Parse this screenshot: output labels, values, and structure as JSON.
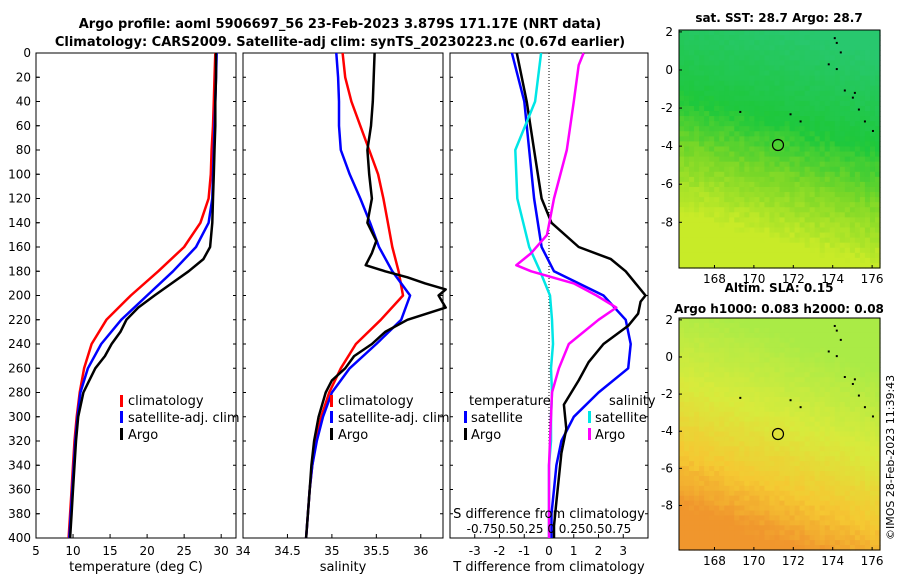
{
  "header": {
    "line1": "Argo profile: aoml 5906697_56 23-Feb-2023 3.879S 171.17E (NRT data)",
    "line2": "Climatology: CARS2009. Satellite-adj clim: synTS_20230223.nc (0.67d earlier)"
  },
  "credit": "©IMOS 28-Feb-2023 11:39:43",
  "colors": {
    "climatology": "#ff0000",
    "satellite": "#0000ff",
    "argo": "#000000",
    "s_satellite": "#00e6e6",
    "s_argo": "#ff00ff"
  },
  "chart_data": [
    {
      "type": "line",
      "panel": "temperature",
      "xlabel": "temperature (deg C)",
      "ylabel": "depth",
      "xlim": [
        5,
        32
      ],
      "ylim": [
        0,
        400
      ],
      "yticks": [
        "0",
        "20",
        "40",
        "60",
        "80",
        "100",
        "120",
        "140",
        "160",
        "180",
        "200",
        "220",
        "240",
        "260",
        "280",
        "300",
        "320",
        "340",
        "360",
        "380",
        "400"
      ],
      "xticks": [
        "5",
        "10",
        "15",
        "20",
        "25",
        "30"
      ],
      "legend": [
        "climatology",
        "satellite-adj. clim",
        "Argo"
      ],
      "series": [
        {
          "name": "climatology",
          "depth": [
            0,
            20,
            40,
            60,
            80,
            100,
            120,
            140,
            160,
            180,
            200,
            220,
            240,
            260,
            280,
            300,
            320,
            340,
            360,
            380,
            400
          ],
          "values": [
            29.2,
            29.1,
            29.0,
            28.9,
            28.7,
            28.6,
            28.3,
            27.2,
            25.0,
            21.5,
            17.8,
            14.5,
            12.5,
            11.5,
            10.9,
            10.5,
            10.2,
            10.0,
            9.8,
            9.6,
            9.4
          ]
        },
        {
          "name": "satellite-adj. clim",
          "depth": [
            0,
            20,
            40,
            60,
            80,
            100,
            120,
            140,
            160,
            180,
            200,
            220,
            240,
            260,
            280,
            300,
            320,
            340,
            360,
            380,
            400
          ],
          "values": [
            29.4,
            29.3,
            29.2,
            29.1,
            29.0,
            28.9,
            28.8,
            28.3,
            26.6,
            23.5,
            20.0,
            16.5,
            13.8,
            12.0,
            11.0,
            10.6,
            10.3,
            10.1,
            9.9,
            9.7,
            9.5
          ]
        },
        {
          "name": "Argo",
          "depth": [
            0,
            20,
            40,
            60,
            80,
            100,
            120,
            140,
            160,
            170,
            180,
            190,
            200,
            210,
            220,
            230,
            240,
            250,
            260,
            270,
            280,
            300,
            320,
            340,
            360,
            380,
            400
          ],
          "values": [
            29.3,
            29.3,
            29.2,
            29.2,
            29.1,
            29.0,
            28.9,
            28.8,
            28.5,
            27.6,
            25.6,
            23.3,
            21.0,
            18.8,
            17.2,
            16.4,
            15.2,
            14.3,
            13.0,
            12.2,
            11.4,
            10.7,
            10.4,
            10.2,
            10.0,
            9.8,
            9.6
          ]
        }
      ]
    },
    {
      "type": "line",
      "panel": "salinity",
      "xlabel": "salinity",
      "xlim": [
        34,
        36.25
      ],
      "ylim": [
        0,
        400
      ],
      "xticks": [
        "34",
        "34.5",
        "35",
        "35.5",
        "36"
      ],
      "legend": [
        "climatology",
        "satellite-adj. clim",
        "Argo"
      ],
      "series": [
        {
          "name": "climatology",
          "depth": [
            0,
            20,
            40,
            60,
            80,
            100,
            120,
            140,
            160,
            180,
            200,
            220,
            240,
            260,
            280,
            300,
            320,
            340,
            360,
            380,
            400
          ],
          "values": [
            35.12,
            35.15,
            35.22,
            35.32,
            35.42,
            35.52,
            35.58,
            35.63,
            35.68,
            35.75,
            35.8,
            35.55,
            35.27,
            35.1,
            34.97,
            34.88,
            34.82,
            34.78,
            34.75,
            34.73,
            34.71
          ]
        },
        {
          "name": "satellite-adj. clim",
          "depth": [
            0,
            20,
            40,
            60,
            80,
            100,
            120,
            140,
            160,
            180,
            200,
            220,
            240,
            260,
            280,
            300,
            320,
            340,
            360,
            380,
            400
          ],
          "values": [
            35.05,
            35.07,
            35.08,
            35.08,
            35.1,
            35.2,
            35.32,
            35.43,
            35.53,
            35.68,
            35.88,
            35.78,
            35.5,
            35.2,
            35.0,
            34.9,
            34.83,
            34.78,
            34.75,
            34.73,
            34.71
          ]
        },
        {
          "name": "Argo",
          "depth": [
            0,
            20,
            40,
            60,
            80,
            100,
            120,
            140,
            155,
            165,
            175,
            180,
            185,
            190,
            195,
            200,
            210,
            220,
            230,
            240,
            250,
            260,
            270,
            280,
            300,
            320,
            340,
            360,
            380,
            400
          ],
          "values": [
            35.48,
            35.47,
            35.46,
            35.44,
            35.4,
            35.42,
            35.45,
            35.4,
            35.5,
            35.45,
            35.38,
            35.6,
            35.85,
            36.05,
            36.28,
            36.2,
            36.28,
            35.85,
            35.6,
            35.45,
            35.25,
            35.15,
            35.0,
            34.93,
            34.85,
            34.8,
            34.77,
            34.75,
            34.73,
            34.71
          ]
        }
      ]
    },
    {
      "type": "line",
      "panel": "difference",
      "xlabel": "T difference from climatology",
      "xlabel2": "S difference from climatology",
      "xlim": [
        -4,
        4
      ],
      "ylim": [
        0,
        400
      ],
      "xticks": [
        "-3",
        "-2",
        "-1",
        "0",
        "1",
        "2",
        "3"
      ],
      "xticks2": [
        "-0.75",
        "0.5",
        "0.25",
        "0",
        "0.25",
        "0.5",
        "0.75"
      ],
      "legend_left_title": "temperature",
      "legend_right_title": "salinity",
      "legend": [
        "satellite",
        "Argo",
        "satellite",
        "Argo"
      ],
      "series": [
        {
          "name": "T satellite",
          "depth": [
            0,
            40,
            80,
            120,
            160,
            180,
            200,
            220,
            240,
            260,
            280,
            300,
            320,
            340,
            360,
            380,
            400
          ],
          "values": [
            -1.5,
            -1.0,
            -0.8,
            -0.6,
            -0.3,
            0.2,
            2.2,
            3.1,
            3.3,
            3.2,
            2.0,
            1.0,
            0.5,
            0.3,
            0.2,
            0.1,
            0.1
          ]
        },
        {
          "name": "T Argo",
          "depth": [
            0,
            40,
            80,
            120,
            140,
            160,
            170,
            180,
            190,
            200,
            205,
            215,
            225,
            240,
            255,
            270,
            290,
            310,
            330,
            350,
            370,
            390,
            400
          ],
          "values": [
            -1.3,
            -0.9,
            -0.6,
            -0.3,
            0.1,
            1.2,
            2.5,
            3.1,
            3.5,
            3.9,
            3.7,
            3.6,
            3.2,
            2.2,
            1.6,
            1.2,
            0.6,
            0.7,
            0.5,
            0.4,
            0.3,
            0.2,
            0.2
          ]
        },
        {
          "name": "S satellite",
          "depth": [
            0,
            40,
            80,
            120,
            160,
            180,
            200,
            220,
            240,
            260,
            280,
            300,
            320,
            340,
            360,
            380,
            400
          ],
          "values": [
            -0.08,
            -0.14,
            -0.34,
            -0.32,
            -0.2,
            -0.09,
            0.01,
            0.03,
            0.04,
            0.02,
            0.03,
            0.02,
            0.02,
            0.0,
            0.0,
            0.0,
            0.0
          ]
        },
        {
          "name": "S Argo",
          "depth": [
            0,
            10,
            40,
            80,
            120,
            150,
            165,
            175,
            180,
            190,
            200,
            210,
            220,
            240,
            260,
            280,
            300,
            320,
            340,
            360,
            380,
            400
          ],
          "values": [
            0.35,
            0.3,
            0.25,
            0.18,
            0.05,
            -0.02,
            -0.18,
            -0.33,
            -0.18,
            0.25,
            0.48,
            0.68,
            0.5,
            0.2,
            0.1,
            0.03,
            0.02,
            0.01,
            0.0,
            0.0,
            0.0,
            0.0
          ]
        }
      ]
    },
    {
      "type": "heatmap",
      "panel": "sst-map",
      "title": "sat. SST: 28.7 Argo: 28.7",
      "xticks": [
        "168",
        "170",
        "172",
        "174",
        "176"
      ],
      "yticks": [
        "2",
        "0",
        "-2",
        "-4",
        "-6",
        "-8"
      ],
      "xlim": [
        166.2,
        176.4
      ],
      "ylim": [
        -10.4,
        2.1
      ],
      "marker": {
        "lon": 171.17,
        "lat": -3.879
      }
    },
    {
      "type": "heatmap",
      "panel": "sla-map",
      "title": "Altim. SLA: 0.15",
      "subtitle": "Argo h1000: 0.083 h2000: 0.08",
      "xticks": [
        "168",
        "170",
        "172",
        "174",
        "176"
      ],
      "yticks": [
        "2",
        "0",
        "-2",
        "-4",
        "-6",
        "-8"
      ],
      "xlim": [
        166.2,
        176.4
      ],
      "ylim": [
        -10.4,
        2.1
      ],
      "marker": {
        "lon": 171.17,
        "lat": -3.879
      }
    }
  ]
}
